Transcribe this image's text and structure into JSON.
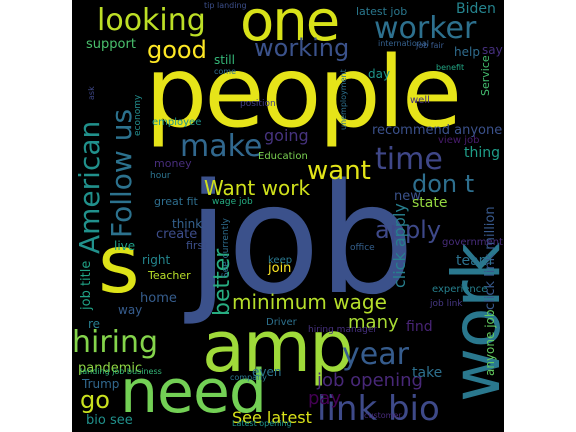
{
  "cloud": {
    "background": "#000000",
    "words": [
      {
        "text": "job",
        "color": "#3b518b"
      },
      {
        "text": "people",
        "color": "#e6e419"
      },
      {
        "text": "amp",
        "color": "#9fda3a"
      },
      {
        "text": "work",
        "color": "#2a788e"
      },
      {
        "text": "need",
        "color": "#73d055"
      },
      {
        "text": "one",
        "color": "#d8e219"
      },
      {
        "text": "s",
        "color": "#dde318"
      },
      {
        "text": "link bio",
        "color": "#3e4a89"
      },
      {
        "text": "looking",
        "color": "#bddf26"
      },
      {
        "text": "worker",
        "color": "#2d708e"
      },
      {
        "text": "American",
        "color": "#21918c"
      },
      {
        "text": "Follow us",
        "color": "#2c728e"
      },
      {
        "text": "hiring",
        "color": "#84d44b"
      },
      {
        "text": "year",
        "color": "#365c8d"
      },
      {
        "text": "time",
        "color": "#3f4788"
      },
      {
        "text": "make",
        "color": "#31688e"
      },
      {
        "text": "good",
        "color": "#fde725"
      },
      {
        "text": "working",
        "color": "#3b528b"
      },
      {
        "text": "want",
        "color": "#e2e418"
      },
      {
        "text": "minimum wage",
        "color": "#b5de2b"
      },
      {
        "text": "Want work",
        "color": "#d0e11c"
      },
      {
        "text": "don t",
        "color": "#2e6f8e"
      },
      {
        "text": "better",
        "color": "#27ad81"
      },
      {
        "text": "job opening",
        "color": "#482878"
      },
      {
        "text": "apply",
        "color": "#3e4989"
      },
      {
        "text": "go",
        "color": "#cae11f"
      },
      {
        "text": "See latest",
        "color": "#dae319"
      },
      {
        "text": "pay",
        "color": "#440154"
      },
      {
        "text": "many",
        "color": "#a8db34"
      },
      {
        "text": "Biden",
        "color": "#25848e"
      },
      {
        "text": "going",
        "color": "#46337e"
      },
      {
        "text": "click apply",
        "color": "#277f8e"
      },
      {
        "text": "click link million",
        "color": "#38598c"
      },
      {
        "text": "anyone job",
        "color": "#63cb5f"
      },
      {
        "text": "recommend anyone",
        "color": "#3b518b"
      },
      {
        "text": "job title",
        "color": "#20a386"
      },
      {
        "text": "support",
        "color": "#4ac16d"
      },
      {
        "text": "still",
        "color": "#35b779"
      },
      {
        "text": "thing",
        "color": "#1f9e89"
      },
      {
        "text": "latest job",
        "color": "#2a788e"
      },
      {
        "text": "bio see",
        "color": "#21918c"
      },
      {
        "text": "team",
        "color": "#2c728e"
      },
      {
        "text": "new",
        "color": "#3b528b"
      },
      {
        "text": "state",
        "color": "#95d840"
      },
      {
        "text": "find",
        "color": "#482475"
      },
      {
        "text": "take",
        "color": "#2d708e"
      },
      {
        "text": "pandemic",
        "color": "#8fd744"
      },
      {
        "text": "Trump",
        "color": "#31688e"
      },
      {
        "text": "home",
        "color": "#365d8d"
      },
      {
        "text": "live",
        "color": "#1fa088"
      },
      {
        "text": "create",
        "color": "#3d4d8a"
      },
      {
        "text": "think",
        "color": "#34618d"
      },
      {
        "text": "right",
        "color": "#24868e"
      },
      {
        "text": "join",
        "color": "#fde725"
      },
      {
        "text": "keep",
        "color": "#2a788e"
      },
      {
        "text": "even",
        "color": "#2b748e"
      },
      {
        "text": "say",
        "color": "#46307e"
      },
      {
        "text": "help",
        "color": "#2f6c8e"
      },
      {
        "text": "day",
        "color": "#1f958b"
      },
      {
        "text": "money",
        "color": "#472d7b"
      },
      {
        "text": "great fit",
        "color": "#2e6e8e"
      },
      {
        "text": "Education",
        "color": "#7ad151"
      },
      {
        "text": "view job",
        "color": "#481b6d"
      },
      {
        "text": "experience",
        "color": "#27808e"
      },
      {
        "text": "Teacher",
        "color": "#b8de29"
      },
      {
        "text": "way",
        "color": "#365c8d"
      },
      {
        "text": "Driver",
        "color": "#2d718e"
      },
      {
        "text": "first",
        "color": "#3c4f8a"
      },
      {
        "text": "employee",
        "color": "#1f958b"
      },
      {
        "text": "government",
        "color": "#472c7a"
      },
      {
        "text": "Service",
        "color": "#44bf70"
      },
      {
        "text": "See currently",
        "color": "#2e6d8e"
      },
      {
        "text": "economy",
        "color": "#228d8d"
      },
      {
        "text": "position",
        "color": "#433e85"
      },
      {
        "text": "hour",
        "color": "#2c738e"
      },
      {
        "text": "wage job",
        "color": "#25ac82"
      },
      {
        "text": "well",
        "color": "#46327e"
      },
      {
        "text": "re",
        "color": "#287d8e"
      },
      {
        "text": "office",
        "color": "#34608d"
      },
      {
        "text": "job link",
        "color": "#453781"
      },
      {
        "text": "hiring manager",
        "color": "#46307e"
      },
      {
        "text": "landing job business",
        "color": "#35b779"
      },
      {
        "text": "company",
        "color": "#2a788e"
      },
      {
        "text": "Latest opening",
        "color": "#1f948c"
      },
      {
        "text": "international",
        "color": "#34608d"
      },
      {
        "text": "tip landing",
        "color": "#3c4f8a"
      },
      {
        "text": "come",
        "color": "#2e6f8e"
      },
      {
        "text": "ask",
        "color": "#3f4889"
      },
      {
        "text": "benefit",
        "color": "#22a785"
      },
      {
        "text": "unemployment",
        "color": "#2d708e"
      },
      {
        "text": "customer",
        "color": "#472a7a"
      },
      {
        "text": "job fair",
        "color": "#38598c"
      }
    ]
  }
}
